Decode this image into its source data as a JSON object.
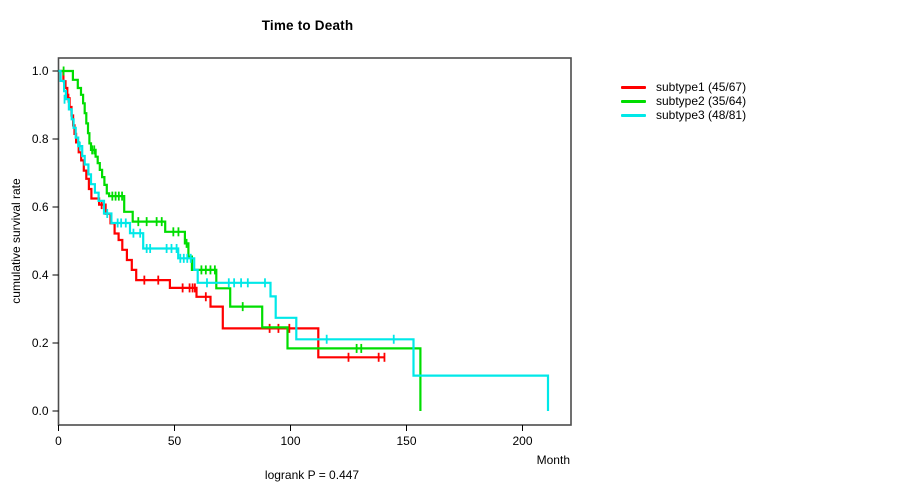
{
  "title": "Time to Death",
  "annotation": {
    "logrank_label": "logrank P = 0.447"
  },
  "axes": {
    "x_label": "Month",
    "y_label": "cumulative survival rate"
  },
  "chart_data": {
    "type": "line",
    "variant": "kaplan-meier-step",
    "title": "Time to Death",
    "xlabel": "Month",
    "ylabel": "cumulative survival rate",
    "x_axis": {
      "ticks": [
        0,
        50,
        100,
        150,
        200
      ],
      "range": [
        0,
        221
      ]
    },
    "y_axis": {
      "tick_labels": [
        "0.0",
        "0.2",
        "0.4",
        "0.6",
        "0.8",
        "1.0"
      ],
      "tick_values": [
        0.0,
        0.2,
        0.4,
        0.6,
        0.8,
        1.0
      ],
      "range": [
        0,
        1
      ]
    },
    "grid": false,
    "legend_position": "right-outside",
    "annotation": "logrank P = 0.447",
    "series": [
      {
        "name": "subtype1",
        "legend_label": "subtype1 (45/67)",
        "events": 45,
        "n": 67,
        "color": "#ff0000",
        "steps": [
          [
            0,
            1.0
          ],
          [
            2.1,
            0.97
          ],
          [
            3.0,
            0.95
          ],
          [
            3.8,
            0.92
          ],
          [
            4.8,
            0.894
          ],
          [
            5.6,
            0.869
          ],
          [
            6.3,
            0.84
          ],
          [
            6.9,
            0.815
          ],
          [
            7.6,
            0.79
          ],
          [
            8.7,
            0.761
          ],
          [
            9.8,
            0.737
          ],
          [
            10.9,
            0.707
          ],
          [
            12.0,
            0.683
          ],
          [
            13.1,
            0.653
          ],
          [
            14.2,
            0.625
          ],
          [
            17.5,
            0.607
          ],
          [
            20.3,
            0.58
          ],
          [
            22.4,
            0.552
          ],
          [
            24.2,
            0.522
          ],
          [
            25.9,
            0.503
          ],
          [
            27.5,
            0.474
          ],
          [
            29.5,
            0.444
          ],
          [
            31.6,
            0.415
          ],
          [
            33.5,
            0.385
          ],
          [
            48.0,
            0.362
          ],
          [
            59.5,
            0.336
          ],
          [
            65.5,
            0.307
          ],
          [
            70.8,
            0.243
          ],
          [
            112.0,
            0.158
          ],
          [
            140.5,
            0.158
          ]
        ],
        "censor_marks": [
          [
            4.3,
            0.92
          ],
          [
            18.6,
            0.607
          ],
          [
            37.0,
            0.385
          ],
          [
            43.0,
            0.385
          ],
          [
            53.5,
            0.362
          ],
          [
            56.5,
            0.362
          ],
          [
            57.8,
            0.362
          ],
          [
            58.8,
            0.362
          ],
          [
            63.5,
            0.336
          ],
          [
            91.0,
            0.243
          ],
          [
            94.8,
            0.243
          ],
          [
            99.5,
            0.243
          ],
          [
            125.0,
            0.158
          ],
          [
            138.0,
            0.158
          ],
          [
            140.5,
            0.158
          ]
        ]
      },
      {
        "name": "subtype2",
        "legend_label": "subtype2 (35/64)",
        "events": 35,
        "n": 64,
        "color": "#00dd00",
        "steps": [
          [
            0,
            1.0
          ],
          [
            6.2,
            0.974
          ],
          [
            8.3,
            0.95
          ],
          [
            9.7,
            0.93
          ],
          [
            10.6,
            0.905
          ],
          [
            11.3,
            0.876
          ],
          [
            12.0,
            0.846
          ],
          [
            12.7,
            0.817
          ],
          [
            13.3,
            0.787
          ],
          [
            14.0,
            0.768
          ],
          [
            16.0,
            0.748
          ],
          [
            16.9,
            0.729
          ],
          [
            17.8,
            0.709
          ],
          [
            18.8,
            0.688
          ],
          [
            19.8,
            0.665
          ],
          [
            20.8,
            0.64
          ],
          [
            21.8,
            0.632
          ],
          [
            28.3,
            0.586
          ],
          [
            32.0,
            0.557
          ],
          [
            46.0,
            0.527
          ],
          [
            54.5,
            0.493
          ],
          [
            56.0,
            0.454
          ],
          [
            57.5,
            0.415
          ],
          [
            68.0,
            0.361
          ],
          [
            74.0,
            0.307
          ],
          [
            87.8,
            0.246
          ],
          [
            98.7,
            0.184
          ],
          [
            156.0,
            0.0
          ]
        ],
        "censor_marks": [
          [
            2.2,
            1.0
          ],
          [
            14.5,
            0.768
          ],
          [
            15.4,
            0.768
          ],
          [
            23.2,
            0.632
          ],
          [
            24.6,
            0.632
          ],
          [
            26.0,
            0.632
          ],
          [
            27.4,
            0.632
          ],
          [
            34.4,
            0.557
          ],
          [
            38.0,
            0.557
          ],
          [
            42.3,
            0.557
          ],
          [
            44.5,
            0.557
          ],
          [
            49.5,
            0.527
          ],
          [
            51.7,
            0.527
          ],
          [
            55.2,
            0.493
          ],
          [
            61.6,
            0.415
          ],
          [
            63.5,
            0.415
          ],
          [
            65.5,
            0.415
          ],
          [
            67.4,
            0.415
          ],
          [
            79.4,
            0.307
          ],
          [
            128.5,
            0.184
          ],
          [
            130.5,
            0.184
          ]
        ]
      },
      {
        "name": "subtype3",
        "legend_label": "subtype3 (48/81)",
        "events": 48,
        "n": 81,
        "color": "#00e8e8",
        "steps": [
          [
            0,
            1.0
          ],
          [
            0.9,
            0.971
          ],
          [
            2.4,
            0.941
          ],
          [
            3.2,
            0.917
          ],
          [
            4.5,
            0.887
          ],
          [
            5.7,
            0.858
          ],
          [
            6.5,
            0.833
          ],
          [
            7.4,
            0.804
          ],
          [
            8.5,
            0.779
          ],
          [
            10.2,
            0.75
          ],
          [
            11.3,
            0.725
          ],
          [
            12.9,
            0.696
          ],
          [
            14.0,
            0.667
          ],
          [
            15.7,
            0.642
          ],
          [
            17.3,
            0.618
          ],
          [
            19.6,
            0.581
          ],
          [
            22.8,
            0.553
          ],
          [
            30.8,
            0.523
          ],
          [
            36.5,
            0.478
          ],
          [
            51.6,
            0.449
          ],
          [
            58.5,
            0.415
          ],
          [
            60.0,
            0.377
          ],
          [
            91.4,
            0.337
          ],
          [
            93.6,
            0.274
          ],
          [
            102.5,
            0.211
          ],
          [
            153.0,
            0.104
          ],
          [
            211.0,
            0.0
          ]
        ],
        "censor_marks": [
          [
            2.6,
            0.917
          ],
          [
            9.2,
            0.779
          ],
          [
            21.0,
            0.581
          ],
          [
            25.5,
            0.553
          ],
          [
            27.0,
            0.553
          ],
          [
            29.0,
            0.553
          ],
          [
            32.3,
            0.523
          ],
          [
            35.2,
            0.523
          ],
          [
            38.0,
            0.478
          ],
          [
            39.5,
            0.478
          ],
          [
            46.6,
            0.478
          ],
          [
            48.7,
            0.478
          ],
          [
            50.9,
            0.478
          ],
          [
            52.5,
            0.449
          ],
          [
            54.0,
            0.449
          ],
          [
            55.5,
            0.449
          ],
          [
            57.0,
            0.449
          ],
          [
            64.0,
            0.377
          ],
          [
            73.4,
            0.377
          ],
          [
            75.7,
            0.377
          ],
          [
            78.7,
            0.377
          ],
          [
            81.6,
            0.377
          ],
          [
            89.0,
            0.377
          ],
          [
            115.6,
            0.211
          ],
          [
            144.5,
            0.211
          ]
        ]
      }
    ]
  }
}
